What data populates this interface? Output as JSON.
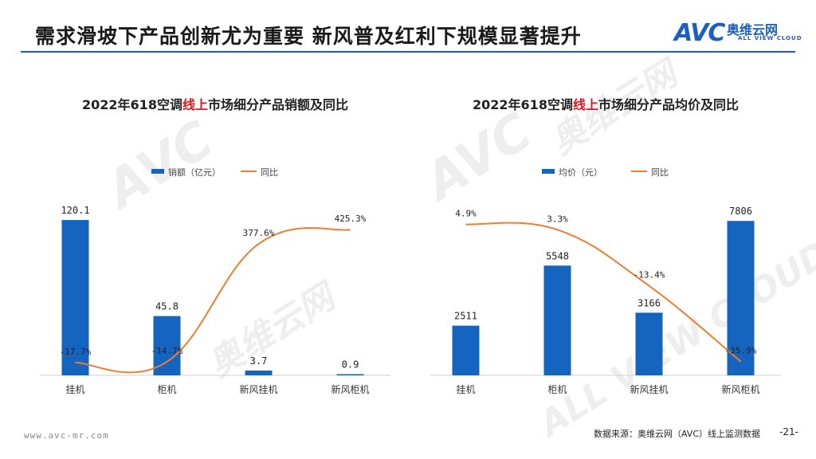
{
  "header": {
    "title": "需求滑坡下产品创新尤为重要  新风普及红利下规模显著提升",
    "logo_mark": "AVC",
    "logo_cn": "奥维云网",
    "logo_en": "ALL VIEW CLOUD",
    "rule_color": "#1e5dbb"
  },
  "watermark": {
    "mark": "AVC",
    "cn": "奥维云网",
    "en": "ALL VIEW CLOUD"
  },
  "colors": {
    "bar": "#1565c0",
    "line": "#ed7d31",
    "highlight": "#e0161e"
  },
  "chart_data": [
    {
      "type": "bar",
      "title_prefix": "2022年618空调",
      "title_highlight": "线上",
      "title_suffix": "市场细分产品销额及同比",
      "categories": [
        "挂机",
        "柜机",
        "新风挂机",
        "新风柜机"
      ],
      "series": [
        {
          "name": "销额（亿元）",
          "type": "bar",
          "values": [
            120.1,
            45.8,
            3.7,
            0.9
          ],
          "labels": [
            "120.1",
            "45.8",
            "3.7",
            "0.9"
          ]
        },
        {
          "name": "同比",
          "type": "line",
          "values": [
            -17.7,
            -14.7,
            377.6,
            425.3
          ],
          "labels": [
            "-17.7%",
            "-14.7%",
            "377.6%",
            "425.3%"
          ]
        }
      ],
      "bar_ylim": [
        0,
        130
      ],
      "line_ylim": [
        -60,
        500
      ],
      "grid": false,
      "legend": "top-center"
    },
    {
      "type": "bar",
      "title_prefix": "2022年618空调",
      "title_highlight": "线上",
      "title_suffix": "市场细分产品均价及同比",
      "categories": [
        "挂机",
        "柜机",
        "新风挂机",
        "新风柜机"
      ],
      "series": [
        {
          "name": "均价（元）",
          "type": "bar",
          "values": [
            2511,
            5548,
            3166,
            7806
          ],
          "labels": [
            "2511",
            "5548",
            "3166",
            "7806"
          ]
        },
        {
          "name": "同比",
          "type": "line",
          "values": [
            4.9,
            3.3,
            -13.4,
            -35.9
          ],
          "labels": [
            "4.9%",
            "3.3%",
            "-13.4%",
            "-35.9%"
          ]
        }
      ],
      "bar_ylim": [
        0,
        8500
      ],
      "line_ylim": [
        -40,
        10
      ],
      "grid": false,
      "legend": "top-center"
    }
  ],
  "footer": {
    "url": "www.avc-mr.com",
    "source": "数据来源：奥维云网（AVC）线上监测数据",
    "page": "-21-"
  }
}
